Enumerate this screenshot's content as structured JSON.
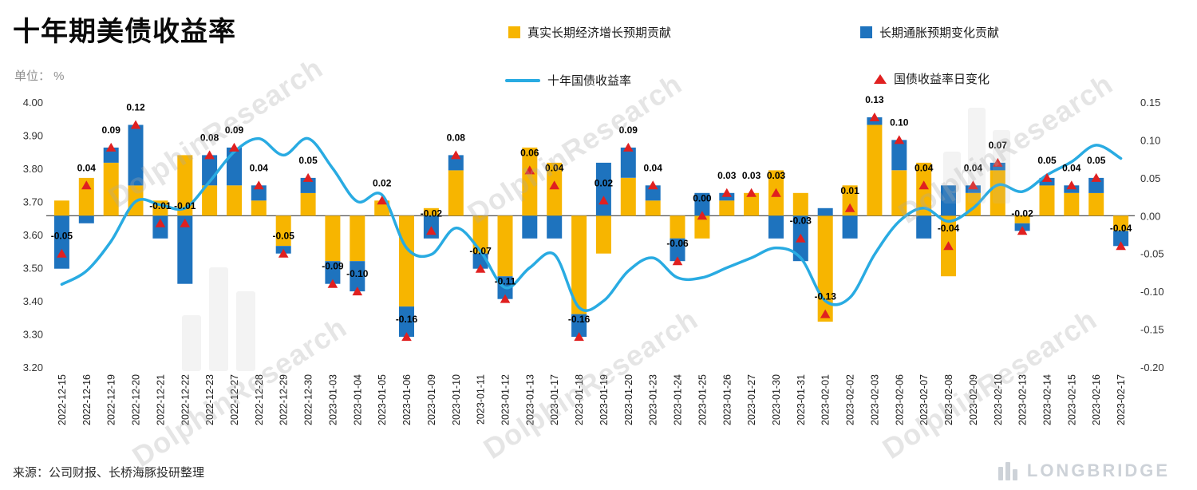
{
  "header": {
    "title": "十年期美债收益率",
    "unit_label": "单位： %",
    "watermark": "DolphinResearch"
  },
  "legend": [
    {
      "label": "真实长期经济增长预期贡献",
      "type": "bar",
      "color": "#F7B500"
    },
    {
      "label": "长期通胀预期变化贡献",
      "type": "bar",
      "color": "#1E73BE"
    },
    {
      "label": "十年国债收益率",
      "type": "line",
      "color": "#29ABE2"
    },
    {
      "label": "国债收益率日变化",
      "type": "triangle",
      "color": "#E02020"
    }
  ],
  "footer": {
    "source": "来源：公司财报、长桥海豚投研整理",
    "brand": "LONGBRIDGE"
  },
  "chart_data": {
    "type": "combo",
    "title": "十年期美债收益率",
    "unit": "%",
    "categories": [
      "2022-12-15",
      "2022-12-16",
      "2022-12-19",
      "2022-12-20",
      "2022-12-21",
      "2022-12-22",
      "2022-12-23",
      "2022-12-27",
      "2022-12-28",
      "2022-12-29",
      "2022-12-30",
      "2023-01-03",
      "2023-01-04",
      "2023-01-05",
      "2023-01-06",
      "2023-01-09",
      "2023-01-10",
      "2023-01-11",
      "2023-01-12",
      "2023-01-13",
      "2023-01-17",
      "2023-01-18",
      "2023-01-19",
      "2023-01-20",
      "2023-01-23",
      "2023-01-24",
      "2023-01-25",
      "2023-01-26",
      "2023-01-27",
      "2023-01-30",
      "2023-01-31",
      "2023-02-01",
      "2023-02-02",
      "2023-02-03",
      "2023-02-06",
      "2023-02-07",
      "2023-02-08",
      "2023-02-09",
      "2023-02-10",
      "2023-02-13",
      "2023-02-14",
      "2023-02-15",
      "2023-02-16",
      "2023-02-17"
    ],
    "series": [
      {
        "name": "真实长期经济增长预期贡献",
        "type": "bar",
        "stack": "contribution",
        "axis": "right",
        "color": "#F7B500",
        "values": [
          0.02,
          0.05,
          0.07,
          0.04,
          0.02,
          0.08,
          0.04,
          0.04,
          0.02,
          -0.04,
          0.03,
          -0.06,
          -0.06,
          0.02,
          -0.12,
          0.01,
          0.06,
          -0.05,
          -0.08,
          0.09,
          0.07,
          -0.13,
          -0.05,
          0.05,
          0.02,
          -0.03,
          -0.03,
          0.02,
          0.03,
          0.06,
          0.03,
          -0.14,
          0.04,
          0.12,
          0.06,
          0.07,
          -0.08,
          0.03,
          0.06,
          -0.01,
          0.04,
          0.03,
          0.03,
          -0.02
        ]
      },
      {
        "name": "长期通胀预期变化贡献",
        "type": "bar",
        "stack": "contribution",
        "axis": "right",
        "color": "#1E73BE",
        "values": [
          -0.07,
          -0.01,
          0.02,
          0.08,
          -0.03,
          -0.09,
          0.04,
          0.05,
          0.02,
          -0.01,
          0.02,
          -0.03,
          -0.04,
          0.0,
          -0.04,
          -0.03,
          0.02,
          -0.02,
          -0.03,
          -0.03,
          -0.03,
          -0.03,
          0.07,
          0.04,
          0.02,
          -0.03,
          0.03,
          0.01,
          0.0,
          -0.03,
          -0.06,
          0.01,
          -0.03,
          0.01,
          0.04,
          -0.03,
          0.04,
          0.01,
          0.01,
          -0.01,
          0.01,
          0.01,
          0.02,
          -0.02
        ]
      },
      {
        "name": "十年国债收益率",
        "type": "line",
        "axis": "left",
        "color": "#29ABE2",
        "smooth": true,
        "values": [
          3.45,
          3.49,
          3.58,
          3.7,
          3.69,
          3.68,
          3.76,
          3.85,
          3.89,
          3.84,
          3.89,
          3.8,
          3.7,
          3.72,
          3.56,
          3.54,
          3.62,
          3.55,
          3.44,
          3.5,
          3.54,
          3.38,
          3.4,
          3.49,
          3.53,
          3.47,
          3.47,
          3.5,
          3.53,
          3.56,
          3.53,
          3.4,
          3.41,
          3.54,
          3.64,
          3.68,
          3.64,
          3.68,
          3.75,
          3.73,
          3.78,
          3.82,
          3.87,
          3.83
        ]
      },
      {
        "name": "国债收益率日变化",
        "type": "scatter",
        "marker": "triangle-up",
        "axis": "right",
        "color": "#E02020",
        "values": [
          -0.05,
          0.04,
          0.09,
          0.12,
          -0.01,
          -0.01,
          0.08,
          0.09,
          0.04,
          -0.05,
          0.05,
          -0.09,
          -0.1,
          0.02,
          -0.16,
          -0.02,
          0.08,
          -0.07,
          -0.11,
          0.06,
          0.04,
          -0.16,
          0.02,
          0.09,
          0.04,
          -0.06,
          0.0,
          0.03,
          0.03,
          0.03,
          -0.03,
          -0.13,
          0.01,
          0.13,
          0.1,
          0.04,
          -0.04,
          0.04,
          0.07,
          -0.02,
          0.05,
          0.04,
          0.05,
          -0.04
        ],
        "labels": [
          "-0.05",
          "0.04",
          "0.09",
          "0.12",
          "-0.01",
          "-0.01",
          "0.08",
          "0.09",
          "0.04",
          "-0.05",
          "0.05",
          "-0.09",
          "-0.10",
          "0.02",
          "-0.16",
          "-0.02",
          "0.08",
          "-0.07",
          "-0.11",
          "0.06",
          "0.04",
          "-0.16",
          "0.02",
          "0.09",
          "0.04",
          "-0.06",
          "0.00",
          "0.03",
          "0.03",
          "0.03",
          "-0.03",
          "-0.13",
          "0.01",
          "0.13",
          "0.10",
          "0.04",
          "-0.04",
          "0.04",
          "0.07",
          "-0.02",
          "0.05",
          "0.04",
          "0.05",
          "-0.04"
        ]
      }
    ],
    "left_axis": {
      "min": 3.2,
      "max": 4.0,
      "step": 0.1,
      "tick_labels": [
        "4.00",
        "3.90",
        "3.80",
        "3.70",
        "3.60",
        "3.50",
        "3.40",
        "3.30",
        "3.20"
      ]
    },
    "right_axis": {
      "min": -0.2,
      "max": 0.15,
      "step": 0.05,
      "tick_labels": [
        "0.15",
        "0.10",
        "0.05",
        "0.00",
        "-0.05",
        "-0.10",
        "-0.15",
        "-0.20"
      ]
    },
    "baseline_value": 0,
    "gridlines": false,
    "legend_position": "top"
  }
}
